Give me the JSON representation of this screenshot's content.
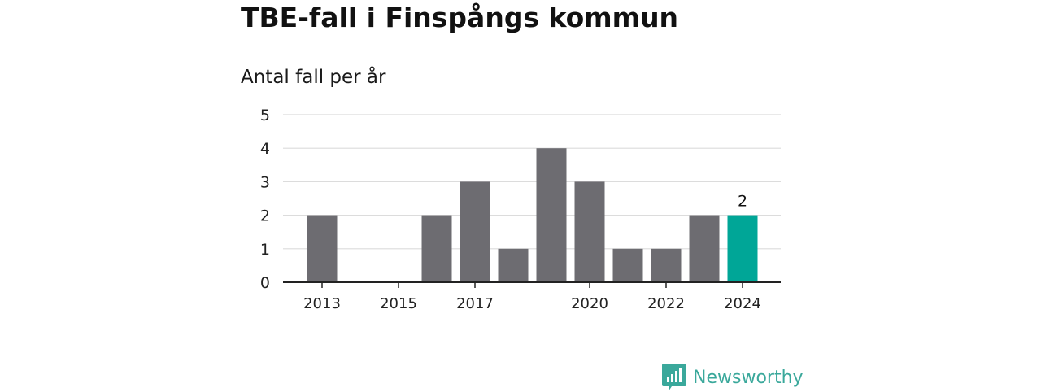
{
  "header": {
    "title": "TBE-fall i Finspångs kommun",
    "subtitle": "Antal fall per år"
  },
  "brand": {
    "name": "Newsworthy",
    "icon": "newsworthy-logo-icon",
    "color": "#3aa89b"
  },
  "chart_data": {
    "type": "bar",
    "title": "TBE-fall i Finspångs kommun",
    "subtitle": "Antal fall per år",
    "xlabel": "",
    "ylabel": "",
    "categories": [
      "2013",
      "2014",
      "2015",
      "2016",
      "2017",
      "2018",
      "2019",
      "2020",
      "2021",
      "2022",
      "2023",
      "2024"
    ],
    "tick_labels": [
      "2013",
      "",
      "2015",
      "",
      "2017",
      "",
      "",
      "2020",
      "",
      "2022",
      "",
      "2024"
    ],
    "values": [
      2,
      0,
      0,
      2,
      3,
      1,
      4,
      3,
      1,
      1,
      2,
      2
    ],
    "yticks": [
      0,
      1,
      2,
      3,
      4,
      5
    ],
    "ylim": [
      0,
      5
    ],
    "grid": true,
    "legend": "none",
    "highlight": {
      "index": 11,
      "label": "2"
    },
    "colors": {
      "bar": "#6d6c71",
      "highlight": "#00a697",
      "grid": "#dcdcdc",
      "axis": "#222222"
    }
  }
}
